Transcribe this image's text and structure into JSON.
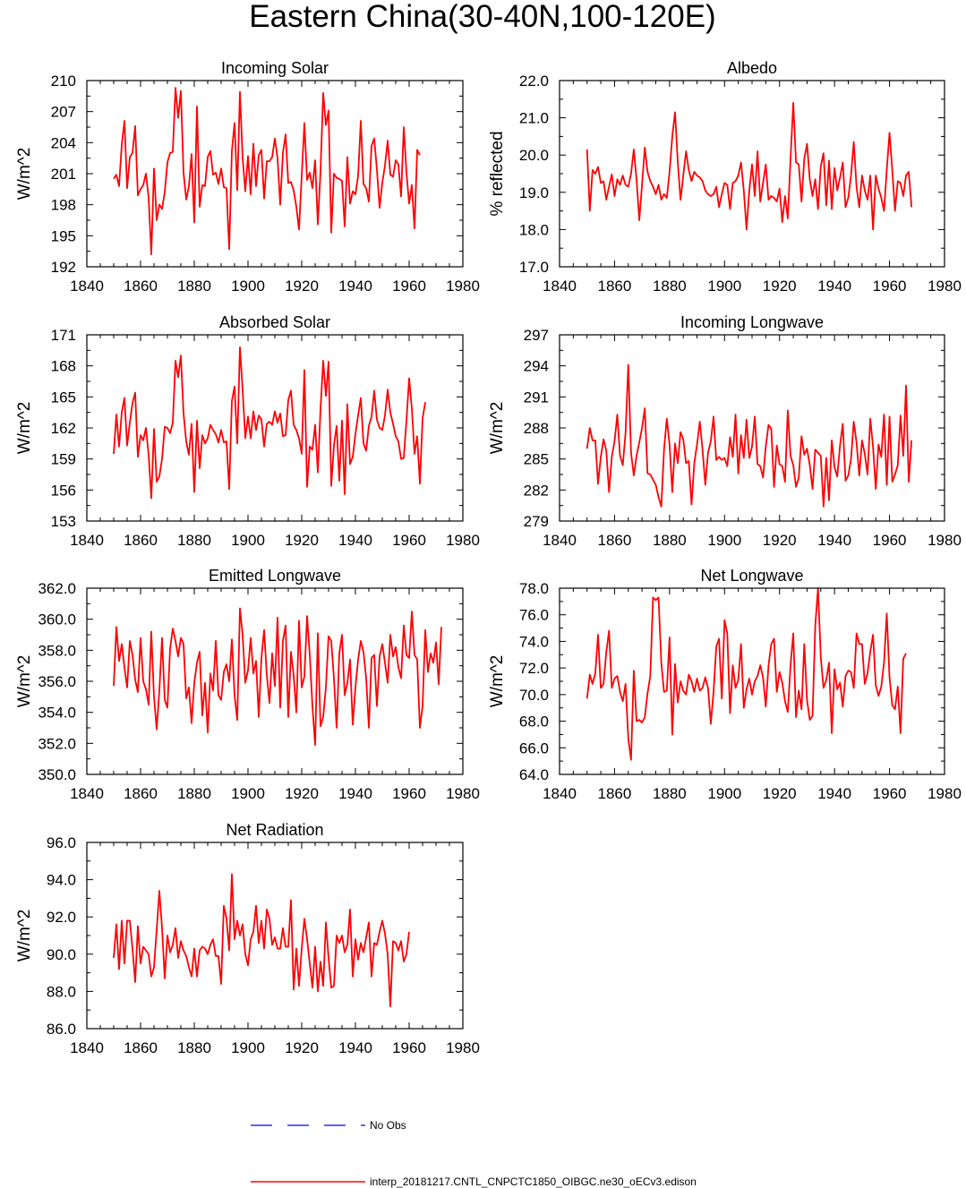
{
  "figure_title": "Eastern China(30-40N,100-120E)",
  "legend": [
    {
      "label": "No Obs",
      "color": "#0000ff",
      "style": "dashed"
    },
    {
      "label": "interp_20181217.CNTL_CNPCTC1850_OIBGC.ne30_oECv3.edison",
      "color": "#ff0000",
      "style": "solid"
    }
  ],
  "chart_data": [
    {
      "type": "line",
      "title": "Incoming Solar",
      "ylabel": "W/m^2",
      "xlim": [
        1840,
        1980
      ],
      "ylim": [
        192,
        210
      ],
      "x_ticks": [
        "1840",
        "1860",
        "1880",
        "1900",
        "1920",
        "1940",
        "1960",
        "1980"
      ],
      "y_ticks": [
        "192",
        "195",
        "198",
        "201",
        "204",
        "207",
        "210"
      ],
      "x_start": 1850,
      "series": [
        {
          "color": "#ff0000",
          "values": [
            200.5,
            200.9,
            199.8,
            203.8,
            206.1,
            199.6,
            202.6,
            203,
            205.6,
            198.9,
            199.5,
            199.9,
            201,
            198.7,
            193.2,
            201.5,
            196.5,
            198,
            197.6,
            199.2,
            202.1,
            203,
            203.1,
            209.3,
            206.4,
            209,
            201.1,
            198.5,
            199.8,
            202.9,
            196.3,
            207.5,
            197.8,
            199.9,
            199.8,
            202.6,
            203.2,
            200.9,
            201.1,
            200,
            201.5,
            199.7,
            199.6,
            193.7,
            203.2,
            205.9,
            199.4,
            208.9,
            202.5,
            199.3,
            202.7,
            199,
            203.9,
            199.8,
            202.8,
            203.3,
            198.6,
            202.2,
            202.2,
            202.6,
            204.4,
            202.5,
            198,
            203,
            204.8,
            200.1,
            200.2,
            199.4,
            197.8,
            195.6,
            200.8,
            205.9,
            200.4,
            201.1,
            199.6,
            202.3,
            196.1,
            201.2,
            208.8,
            205.7,
            207.1,
            195.3,
            201,
            200.6,
            200.5,
            200.3,
            195.9,
            202.6,
            198.1,
            199.3,
            199,
            200.8,
            206.1,
            200,
            199.6,
            198.3,
            203.7,
            204.4,
            201.4,
            197.7,
            200.1,
            201.8,
            204.2,
            200.9,
            200.7,
            202.3,
            201.9,
            198.8,
            205.5,
            201.1,
            198.1,
            199.9,
            195.7,
            203.3,
            202.8
          ]
        }
      ]
    },
    {
      "type": "line",
      "title": "Albedo",
      "ylabel": "% reflected",
      "xlim": [
        1840,
        1980
      ],
      "ylim": [
        17.0,
        22.0
      ],
      "x_ticks": [
        "1840",
        "1860",
        "1880",
        "1900",
        "1920",
        "1940",
        "1960",
        "1980"
      ],
      "y_ticks": [
        "17.0",
        "18.0",
        "19.0",
        "20.0",
        "21.0",
        "22.0"
      ],
      "x_start": 1850,
      "series": [
        {
          "color": "#ff0000",
          "values": [
            20.15,
            18.5,
            19.6,
            19.5,
            19.68,
            19.25,
            19.3,
            18.8,
            19.15,
            19.48,
            18.9,
            19.35,
            19.2,
            19.45,
            19.2,
            19.15,
            19.5,
            20.15,
            19.35,
            18.25,
            19.2,
            20.2,
            19.55,
            19.3,
            19.15,
            18.95,
            19.2,
            18.8,
            18.95,
            18.85,
            19.55,
            20.5,
            21.15,
            19.8,
            18.8,
            19.45,
            20.1,
            19.6,
            19.3,
            19.55,
            19.45,
            19.4,
            19.3,
            19.05,
            18.95,
            18.9,
            18.95,
            19.15,
            18.6,
            18.95,
            19.25,
            19.2,
            18.55,
            19.25,
            19.3,
            19.45,
            19.8,
            19.05,
            18,
            19.05,
            19.75,
            18.9,
            20.1,
            18.75,
            19.25,
            19.75,
            18.8,
            18.9,
            18.85,
            18.75,
            19.1,
            18.2,
            18.9,
            18.3,
            19.9,
            21.4,
            19.8,
            19.75,
            18.75,
            19.9,
            20.3,
            19.35,
            18.9,
            19.35,
            18.55,
            19.7,
            20.05,
            18.65,
            19.85,
            18.55,
            19.65,
            19.05,
            19.4,
            19.8,
            18.6,
            18.85,
            19.45,
            20.35,
            19.15,
            18.6,
            19.45,
            19.05,
            18.8,
            19.45,
            18,
            19.45,
            19.1,
            18.85,
            18.5,
            19.6,
            20.6,
            19.6,
            18.5,
            19.3,
            19.25,
            18.9,
            19.45,
            19.55,
            18.6
          ]
        }
      ]
    },
    {
      "type": "line",
      "title": "Absorbed Solar",
      "ylabel": "W/m^2",
      "xlim": [
        1840,
        1980
      ],
      "ylim": [
        153,
        171
      ],
      "x_ticks": [
        "1840",
        "1860",
        "1880",
        "1900",
        "1920",
        "1940",
        "1960",
        "1980"
      ],
      "y_ticks": [
        "153",
        "156",
        "159",
        "162",
        "165",
        "168",
        "171"
      ],
      "x_start": 1850,
      "series": [
        {
          "color": "#ff0000",
          "values": [
            159.5,
            163.3,
            160.2,
            163.5,
            164.9,
            160.3,
            162.5,
            164.4,
            165.4,
            159.2,
            161.3,
            160.8,
            162,
            159.4,
            155.2,
            161.9,
            156.8,
            157.3,
            159,
            162.1,
            162,
            161.5,
            162.5,
            168.5,
            166.9,
            169,
            163.4,
            160.7,
            159.4,
            162.4,
            155.8,
            162.7,
            158.1,
            161.3,
            160.5,
            161,
            162.3,
            161.8,
            161.4,
            160.6,
            161.8,
            160.6,
            160.7,
            156.1,
            164.6,
            166,
            160.5,
            169.8,
            165.7,
            161,
            163.1,
            161,
            163.6,
            161.8,
            163.2,
            162.8,
            160.2,
            162.4,
            162.6,
            162.3,
            163.6,
            162.5,
            163.4,
            161.2,
            161.3,
            164.7,
            165.6,
            162.3,
            161.8,
            161,
            159.5,
            167.6,
            156.3,
            160.2,
            159.9,
            162.3,
            157.7,
            163.8,
            168.5,
            165.1,
            168.4,
            156.4,
            160.3,
            162.2,
            156.9,
            162.7,
            155.6,
            164.3,
            158.5,
            159.2,
            161.4,
            163.2,
            164.9,
            160.5,
            159.8,
            162.2,
            163.1,
            165.6,
            162.8,
            162,
            161.8,
            163.2,
            165.7,
            163.5,
            162.4,
            161.2,
            160.7,
            159,
            159.1,
            162.7,
            166.8,
            163.9,
            159.5,
            161.2,
            156.6,
            162.9,
            164.5
          ]
        }
      ]
    },
    {
      "type": "line",
      "title": "Incoming Longwave",
      "ylabel": "W/m^2",
      "xlim": [
        1840,
        1980
      ],
      "ylim": [
        279,
        297
      ],
      "x_ticks": [
        "1840",
        "1860",
        "1880",
        "1900",
        "1920",
        "1940",
        "1960",
        "1980"
      ],
      "y_ticks": [
        "279",
        "282",
        "285",
        "288",
        "291",
        "294",
        "297"
      ],
      "x_start": 1850,
      "series": [
        {
          "color": "#ff0000",
          "values": [
            286,
            288,
            286.8,
            286.8,
            282.6,
            285.2,
            286.9,
            285.8,
            281.8,
            285.2,
            286.7,
            289.3,
            285.3,
            284.4,
            287.5,
            294.1,
            285.6,
            283.4,
            285.3,
            286.6,
            288,
            289.9,
            283.6,
            283.5,
            283,
            282.5,
            281.3,
            280.4,
            285.9,
            288.9,
            286.4,
            281.8,
            286.5,
            284.6,
            287.6,
            286.9,
            284.6,
            284.8,
            280.6,
            284.6,
            286.4,
            288.6,
            285.9,
            282.5,
            285.6,
            286.7,
            289.1,
            284.9,
            285.2,
            284.9,
            285.1,
            284.3,
            287.1,
            285.2,
            289.3,
            283.6,
            287.3,
            285.1,
            288.8,
            285.1,
            286.2,
            289.1,
            284.5,
            284.3,
            283.2,
            286.2,
            288.3,
            287.9,
            282.3,
            286.3,
            284.5,
            284.3,
            282.8,
            289.7,
            285.3,
            284.4,
            282.3,
            283.2,
            287.2,
            285.4,
            286,
            284.4,
            282.1,
            285.9,
            285.6,
            285.3,
            280.4,
            285.1,
            281,
            286.8,
            284.2,
            283.3,
            286.3,
            288.4,
            282.9,
            283.4,
            285,
            288.6,
            286.6,
            283.4,
            286.8,
            285.5,
            283.5,
            288.9,
            286.2,
            282.1,
            286.4,
            285.2,
            289.3,
            282.5,
            289.1,
            282.8,
            283.5,
            284.4,
            289.2,
            285.3,
            292.1,
            282.8,
            286.8
          ]
        }
      ]
    },
    {
      "type": "line",
      "title": "Emitted Longwave",
      "ylabel": "W/m^2",
      "xlim": [
        1840,
        1980
      ],
      "ylim": [
        350.0,
        362.0
      ],
      "x_ticks": [
        "1840",
        "1860",
        "1880",
        "1900",
        "1920",
        "1940",
        "1960",
        "1980"
      ],
      "y_ticks": [
        "350.0",
        "352.0",
        "354.0",
        "356.0",
        "358.0",
        "360.0",
        "362.0"
      ],
      "x_start": 1850,
      "series": [
        {
          "color": "#ff0000",
          "values": [
            355.7,
            359.5,
            357.3,
            358.4,
            356.9,
            355.6,
            358.6,
            357.7,
            356.1,
            355.3,
            358.8,
            356,
            355.5,
            354.5,
            359.2,
            355,
            352.9,
            355.4,
            358.8,
            354.8,
            354.3,
            358.1,
            359.4,
            358.6,
            357.6,
            358.8,
            358.4,
            354.9,
            355.6,
            353.3,
            355.9,
            357.2,
            357.9,
            353.8,
            355.9,
            352.7,
            356.5,
            355.4,
            358.6,
            355.1,
            354.8,
            356.6,
            357.1,
            356,
            358.7,
            355.1,
            353.5,
            360.7,
            359,
            355.9,
            356.7,
            358.8,
            356.5,
            357.3,
            353.7,
            357.5,
            359.3,
            356.4,
            354.6,
            357.8,
            355.7,
            360.1,
            354.3,
            358.6,
            359.6,
            353.7,
            357.9,
            356.4,
            354,
            359.9,
            355.6,
            356.3,
            360.2,
            357.7,
            354.4,
            351.9,
            359.1,
            353.1,
            353.7,
            355.6,
            358.9,
            358.6,
            356.2,
            353,
            357.8,
            359,
            355.1,
            355.9,
            357.4,
            353.2,
            355.6,
            357.4,
            358.6,
            357.9,
            356.2,
            353,
            357.5,
            357.7,
            354.4,
            357.6,
            358.4,
            357.2,
            355.9,
            359,
            357.6,
            358.2,
            356.9,
            356.2,
            359.6,
            357.7,
            357.5,
            360.5,
            357.7,
            357.4,
            353,
            354.4,
            359.3,
            356.6,
            357.8,
            357.2,
            358.5,
            355.8,
            359.5
          ]
        }
      ]
    },
    {
      "type": "line",
      "title": "Net Longwave",
      "ylabel": "W/m^2",
      "xlim": [
        1840,
        1980
      ],
      "ylim": [
        64.0,
        78.0
      ],
      "x_ticks": [
        "1840",
        "1860",
        "1880",
        "1900",
        "1920",
        "1940",
        "1960",
        "1980"
      ],
      "y_ticks": [
        "64.0",
        "66.0",
        "68.0",
        "70.0",
        "72.0",
        "74.0",
        "76.0",
        "78.0"
      ],
      "x_start": 1850,
      "series": [
        {
          "color": "#ff0000",
          "values": [
            69.7,
            71.5,
            70.8,
            71.6,
            74.5,
            70.5,
            70.8,
            73.2,
            74.8,
            70.5,
            71.2,
            71.4,
            70.2,
            69.5,
            70.8,
            66.7,
            65.1,
            71.8,
            68,
            68.1,
            67.9,
            68.3,
            70.1,
            71.4,
            77.3,
            77.1,
            77.3,
            72.4,
            70.2,
            70.3,
            74.3,
            67,
            72.3,
            69.4,
            71,
            70.3,
            70,
            71.5,
            71,
            70.2,
            71.2,
            70.3,
            70.5,
            71.3,
            70.5,
            67.8,
            70.2,
            73.6,
            74.2,
            69.7,
            75.6,
            74.6,
            68.6,
            72.2,
            70.5,
            71.1,
            73.8,
            69,
            70.4,
            71.2,
            70,
            71,
            71.4,
            72.2,
            71.3,
            69.1,
            72.2,
            73.8,
            74.2,
            70.2,
            71.7,
            70.9,
            69.5,
            68.7,
            72.2,
            74.6,
            68.3,
            70.3,
            68.9,
            73.8,
            69.6,
            68.1,
            68.4,
            75.2,
            78,
            72.8,
            70.5,
            71.1,
            72.4,
            67.1,
            71.9,
            70.4,
            70.9,
            69.1,
            71.4,
            71.8,
            71.7,
            70.5,
            74.6,
            73.8,
            73.8,
            70.8,
            71.6,
            73.2,
            74.5,
            70.7,
            69.9,
            70.6,
            72.4,
            76.1,
            71.3,
            69.2,
            68.9,
            70.6,
            67.1,
            72.7,
            73.1
          ]
        }
      ]
    },
    {
      "type": "line",
      "title": "Net Radiation",
      "ylabel": "W/m^2",
      "xlim": [
        1840,
        1980
      ],
      "ylim": [
        86.0,
        96.0
      ],
      "x_ticks": [
        "1840",
        "1860",
        "1880",
        "1900",
        "1920",
        "1940",
        "1960",
        "1980"
      ],
      "y_ticks": [
        "86.0",
        "88.0",
        "90.0",
        "92.0",
        "94.0",
        "96.0"
      ],
      "x_start": 1850,
      "series": [
        {
          "color": "#ff0000",
          "values": [
            89.8,
            91.6,
            89.2,
            91.8,
            89.5,
            91.8,
            91.8,
            90.3,
            88.5,
            91.5,
            89.5,
            90.4,
            90.2,
            90,
            88.8,
            89.3,
            91.3,
            93.4,
            91.4,
            88.7,
            91,
            90.1,
            90.5,
            91.4,
            89.8,
            90.7,
            90.2,
            89.9,
            89.3,
            88.8,
            90.3,
            88.8,
            90.2,
            90.4,
            90.3,
            90,
            90.5,
            90.8,
            89.9,
            89.9,
            88.4,
            92.6,
            91.9,
            90.2,
            94.3,
            90.8,
            91.8,
            91,
            91.6,
            90,
            89.4,
            90.8,
            91.2,
            92.6,
            90.6,
            91.8,
            90.3,
            92.4,
            91.9,
            90.5,
            90.9,
            90.3,
            90.3,
            91.4,
            90.4,
            90.4,
            92.9,
            88.1,
            90.3,
            88.3,
            90.3,
            91.9,
            90.8,
            89.5,
            88.2,
            90.4,
            88,
            89.6,
            88.3,
            91.7,
            89.8,
            88.2,
            88.3,
            91,
            90.6,
            91,
            90.1,
            90.5,
            92.4,
            88.8,
            90.8,
            89.7,
            90.6,
            90.1,
            90.9,
            91.7,
            88.8,
            90.6,
            90.5,
            91.2,
            91.8,
            91.1,
            90,
            87.2,
            90.7,
            90.6,
            90.2,
            90.7,
            89.6,
            90,
            91.2
          ]
        }
      ]
    }
  ]
}
